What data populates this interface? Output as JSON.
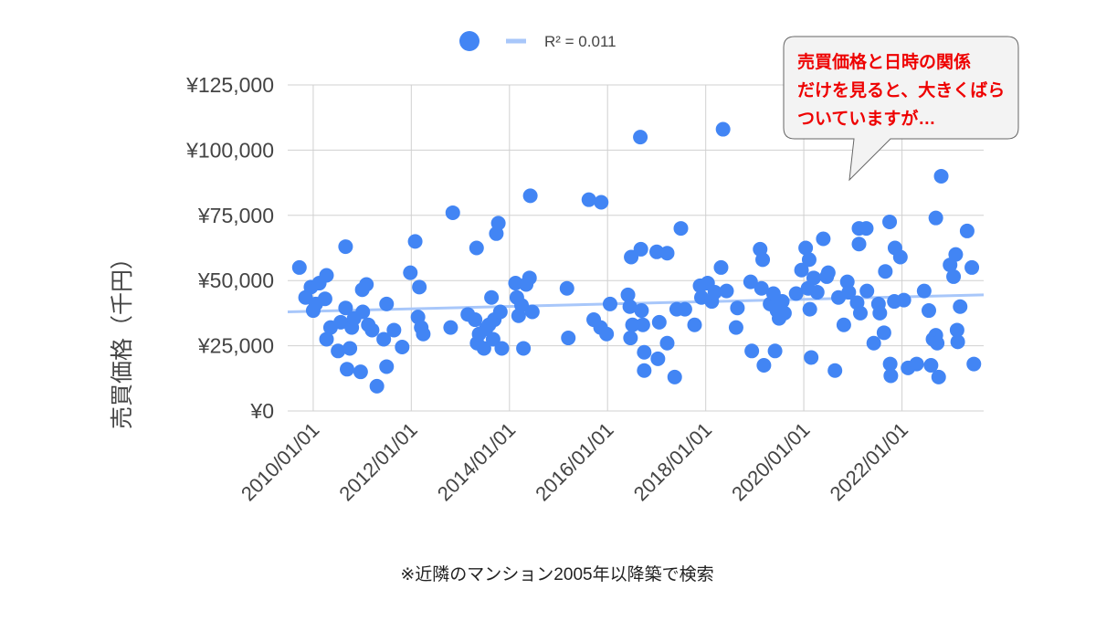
{
  "chart_data": {
    "type": "scatter",
    "y_axis_label": "売買価格（千円）",
    "footnote": "※近隣のマンション2005年以降築で検索",
    "callout": [
      "売買価格と日時の関係",
      "だけを見ると、大きくばら",
      "ついていますが…"
    ],
    "trendline": {
      "label": "R² = 0.011",
      "color": "#a8c7fa",
      "values": [
        38000,
        44500
      ]
    },
    "xlim": [
      "2009/06/25",
      "2023/09/01"
    ],
    "xticks": [
      "2010/01/01",
      "2012/01/01",
      "2014/01/01",
      "2016/01/01",
      "2018/01/01",
      "2020/01/01",
      "2022/01/01"
    ],
    "ylim": [
      0,
      125000
    ],
    "yticks": [
      {
        "value": 0,
        "label": "¥0"
      },
      {
        "value": 25000,
        "label": "¥25,000"
      },
      {
        "value": 50000,
        "label": "¥50,000"
      },
      {
        "value": 75000,
        "label": "¥75,000"
      },
      {
        "value": 100000,
        "label": "¥100,000"
      },
      {
        "value": 125000,
        "label": "¥125,000"
      }
    ],
    "grid": true,
    "series": [
      {
        "color": "#4285f4",
        "x": [
          "2009/09/20",
          "2009/11/05",
          "2009/12/15",
          "2010/01/01",
          "2010/01/20",
          "2010/02/15",
          "2010/03/30",
          "2010/04/10",
          "2010/04/10",
          "2010/05/10",
          "2010/07/05",
          "2010/07/25",
          "2010/08/30",
          "2010/08/30",
          "2010/09/10",
          "2010/10/01",
          "2010/10/15",
          "2010/11/01",
          "2010/12/20",
          "2011/01/01",
          "2011/01/05",
          "2011/02/01",
          "2011/02/15",
          "2011/03/15",
          "2011/04/20",
          "2011/06/10",
          "2011/07/01",
          "2011/07/01",
          "2011/08/25",
          "2011/10/25",
          "2011/12/25",
          "2012/01/30",
          "2012/02/20",
          "2012/03/01",
          "2012/03/15",
          "2012/03/30",
          "2012/10/20",
          "2012/11/05",
          "2013/02/25",
          "2013/04/20",
          "2013/05/01",
          "2013/05/05",
          "2013/05/20",
          "2013/06/25",
          "2013/07/10",
          "2013/08/01",
          "2013/08/20",
          "2013/09/01",
          "2013/09/10",
          "2013/09/25",
          "2013/10/10",
          "2013/10/25",
          "2013/11/05",
          "2014/02/15",
          "2014/02/25",
          "2014/03/10",
          "2014/04/01",
          "2014/04/15",
          "2014/05/05",
          "2014/05/30",
          "2014/06/05",
          "2014/06/20",
          "2015/03/05",
          "2015/03/15",
          "2015/08/15",
          "2015/09/20",
          "2015/11/15",
          "2015/11/10",
          "2015/12/25",
          "2016/01/20",
          "2016/06/01",
          "2016/06/15",
          "2016/06/20",
          "2016/06/25",
          "2016/07/05",
          "2016/09/01",
          "2016/09/05",
          "2016/09/10",
          "2016/09/20",
          "2016/09/30",
          "2016/09/30",
          "2017/01/01",
          "2017/01/10",
          "2017/01/20",
          "2017/03/20",
          "2017/03/20",
          "2017/05/15",
          "2017/05/30",
          "2017/06/30",
          "2017/07/30",
          "2017/10/10",
          "2017/11/20",
          "2017/11/30",
          "2018/01/15",
          "2018/02/15",
          "2018/03/10",
          "2018/04/25",
          "2018/05/10",
          "2018/06/05",
          "2018/08/15",
          "2018/08/25",
          "2018/12/01",
          "2018/12/10",
          "2019/02/10",
          "2019/02/20",
          "2019/03/01",
          "2019/03/10",
          "2019/04/25",
          "2019/05/20",
          "2019/06/01",
          "2019/06/15",
          "2019/07/01",
          "2019/07/25",
          "2019/08/10",
          "2019/11/05",
          "2019/12/15",
          "2020/01/15",
          "2020/02/01",
          "2020/02/10",
          "2020/02/15",
          "2020/02/25",
          "2020/03/15",
          "2020/04/10",
          "2020/05/25",
          "2020/06/20",
          "2020/07/01",
          "2020/08/20",
          "2020/09/15",
          "2020/10/25",
          "2020/11/20",
          "2020/12/01",
          "2021/02/01",
          "2021/02/15",
          "2021/02/15",
          "2021/02/25",
          "2021/04/10",
          "2021/04/15",
          "2021/06/05",
          "2021/07/10",
          "2021/07/20",
          "2021/08/20",
          "2021/08/30",
          "2021/10/01",
          "2021/10/05",
          "2021/10/10",
          "2021/11/05",
          "2021/11/10",
          "2021/12/20",
          "2022/01/15",
          "2022/02/15",
          "2022/04/20",
          "2022/06/15",
          "2022/07/20",
          "2022/08/05",
          "2022/08/20",
          "2022/09/10",
          "2022/09/10",
          "2022/09/20",
          "2022/10/01",
          "2022/10/20",
          "2022/12/25",
          "2023/01/20",
          "2023/02/05",
          "2023/02/15",
          "2023/02/20",
          "2023/03/10",
          "2023/05/01",
          "2023/06/05",
          "2023/06/20"
        ],
        "values": [
          55000,
          43500,
          47500,
          38500,
          41000,
          49000,
          43000,
          52000,
          27500,
          32000,
          23000,
          34000,
          63000,
          39500,
          16000,
          24000,
          32000,
          35500,
          15000,
          46500,
          38000,
          48500,
          33000,
          31000,
          9500,
          27500,
          41000,
          17000,
          31000,
          24500,
          53000,
          65000,
          36000,
          47500,
          32000,
          29500,
          32000,
          76000,
          37000,
          35000,
          62500,
          26000,
          29500,
          24000,
          31500,
          33000,
          43500,
          27500,
          35000,
          68000,
          72000,
          38000,
          24000,
          49000,
          43500,
          36500,
          40500,
          24000,
          48500,
          51000,
          82500,
          38000,
          47000,
          28000,
          81000,
          35000,
          80000,
          32000,
          29500,
          41000,
          44500,
          40000,
          28000,
          59000,
          33000,
          105000,
          62000,
          38500,
          33000,
          22500,
          15500,
          61000,
          20000,
          34000,
          60500,
          26000,
          13000,
          39000,
          70000,
          39000,
          33000,
          48000,
          43500,
          49000,
          42000,
          45500,
          55000,
          108000,
          46000,
          32000,
          39500,
          49500,
          23000,
          62000,
          47000,
          58000,
          17500,
          41000,
          45000,
          23000,
          38500,
          35500,
          42000,
          37500,
          45000,
          54000,
          62500,
          47000,
          58000,
          39000,
          20500,
          51000,
          45500,
          66000,
          51500,
          53000,
          15500,
          43500,
          33000,
          49500,
          45500,
          41500,
          70000,
          64000,
          37500,
          70000,
          46000,
          26000,
          41000,
          37500,
          30000,
          53500,
          72500,
          18000,
          13500,
          42000,
          62500,
          59000,
          42500,
          16500,
          18000,
          46000,
          38500,
          17500,
          27500,
          74000,
          29000,
          26000,
          13000,
          90000,
          56000,
          51500,
          60000,
          31000,
          26500,
          40000,
          69000,
          55000,
          18000
        ]
      }
    ]
  }
}
